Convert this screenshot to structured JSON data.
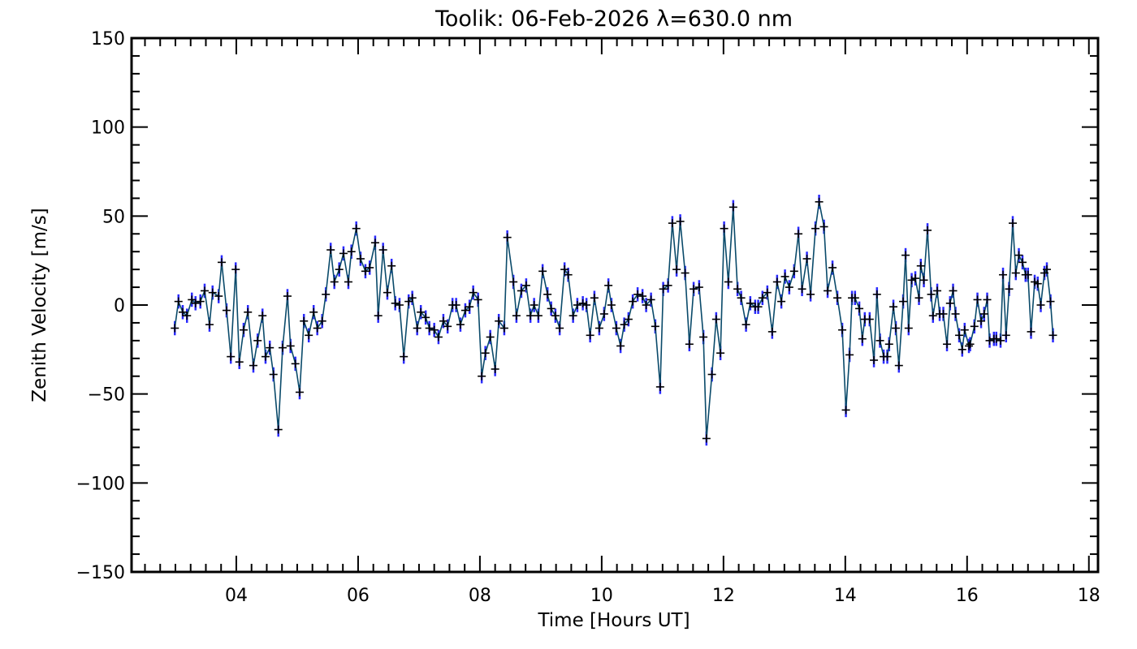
{
  "chart_data": {
    "type": "scatter",
    "title": "Toolik: 06-Feb-2026 λ=630.0 nm",
    "xlabel": "Time [Hours UT]",
    "ylabel": "Zenith Velocity [m/s]",
    "xlim": [
      2.28,
      18.15
    ],
    "ylim": [
      -150,
      150
    ],
    "x_ticks": [
      4,
      6,
      8,
      10,
      12,
      14,
      16,
      18
    ],
    "x_tick_labels": [
      "04",
      "06",
      "08",
      "10",
      "12",
      "14",
      "16",
      "18"
    ],
    "x_minor_step": 0.25,
    "y_ticks": [
      -150,
      -100,
      -50,
      0,
      50,
      100,
      150
    ],
    "y_tick_labels": [
      "−150",
      "−100",
      "−50",
      "0",
      "50",
      "100",
      "150"
    ],
    "y_minor_step": 10,
    "grid": false,
    "error_bar_halfwidth": 4,
    "colors": {
      "line": "#0a4a6a",
      "error": "#2a2aff",
      "marker": "#000000",
      "axis": "#000000"
    },
    "series": [
      {
        "name": "Zenith Velocity",
        "x": [
          2.99,
          3.05,
          3.12,
          3.19,
          3.27,
          3.33,
          3.41,
          3.48,
          3.56,
          3.61,
          3.71,
          3.76,
          3.84,
          3.91,
          3.99,
          4.05,
          4.12,
          4.19,
          4.28,
          4.35,
          4.43,
          4.48,
          4.55,
          4.61,
          4.69,
          4.76,
          4.84,
          4.89,
          4.97,
          5.04,
          5.11,
          5.19,
          5.27,
          5.33,
          5.41,
          5.47,
          5.55,
          5.61,
          5.69,
          5.76,
          5.84,
          5.89,
          5.97,
          6.04,
          6.12,
          6.19,
          6.28,
          6.33,
          6.41,
          6.48,
          6.55,
          6.61,
          6.68,
          6.75,
          6.83,
          6.89,
          6.97,
          7.03,
          7.11,
          7.17,
          7.25,
          7.32,
          7.4,
          7.47,
          7.55,
          7.61,
          7.68,
          7.76,
          7.83,
          7.89,
          7.97,
          8.03,
          8.09,
          8.17,
          8.25,
          8.31,
          8.4,
          8.45,
          8.55,
          8.6,
          8.68,
          8.76,
          8.83,
          8.89,
          8.96,
          9.03,
          9.11,
          9.17,
          9.24,
          9.31,
          9.39,
          9.45,
          9.53,
          9.6,
          9.69,
          9.75,
          9.81,
          9.88,
          9.96,
          10.04,
          10.11,
          10.16,
          10.24,
          10.31,
          10.37,
          10.44,
          10.51,
          10.59,
          10.67,
          10.73,
          10.81,
          10.88,
          10.96,
          11.01,
          11.09,
          11.16,
          11.23,
          11.29,
          11.37,
          11.44,
          11.51,
          11.6,
          11.67,
          11.72,
          11.81,
          11.88,
          11.95,
          12.01,
          12.08,
          12.16,
          12.23,
          12.29,
          12.37,
          12.44,
          12.52,
          12.57,
          12.64,
          12.72,
          12.8,
          12.88,
          12.95,
          13.01,
          13.08,
          13.16,
          13.23,
          13.29,
          13.37,
          13.43,
          13.51,
          13.57,
          13.65,
          13.71,
          13.79,
          13.87,
          13.95,
          14.01,
          14.07,
          14.11,
          14.16,
          14.23,
          14.28,
          14.32,
          14.4,
          14.47,
          14.52,
          14.57,
          14.63,
          14.69,
          14.72,
          14.79,
          14.83,
          14.88,
          14.95,
          14.99,
          15.04,
          15.09,
          15.15,
          15.21,
          15.24,
          15.29,
          15.35,
          15.41,
          15.44,
          15.51,
          15.55,
          15.61,
          15.67,
          15.72,
          15.77,
          15.81,
          15.87,
          15.92,
          15.96,
          16.03,
          16.05,
          16.12,
          16.17,
          16.23,
          16.28,
          16.33,
          16.37,
          16.44,
          16.48,
          16.55,
          16.59,
          16.64,
          16.69,
          16.75,
          16.8,
          16.85,
          16.91,
          16.96,
          17.0,
          17.05,
          17.11,
          17.16,
          17.21,
          17.27,
          17.31,
          17.37,
          17.41
        ],
        "y": [
          -13,
          2,
          -4,
          -6,
          3,
          1,
          2,
          8,
          -11,
          7,
          5,
          24,
          -3,
          -29,
          20,
          -32,
          -14,
          -4,
          -34,
          -20,
          -6,
          -29,
          -24,
          -39,
          -70,
          -24,
          5,
          -23,
          -33,
          -49,
          -9,
          -17,
          -4,
          -13,
          -9,
          6,
          31,
          13,
          20,
          29,
          13,
          30,
          43,
          26,
          19,
          21,
          35,
          -6,
          31,
          7,
          22,
          1,
          0,
          -29,
          2,
          4,
          -13,
          -4,
          -7,
          -13,
          -14,
          -18,
          -9,
          -12,
          0,
          0,
          -11,
          -3,
          -1,
          7,
          3,
          -40,
          -27,
          -18,
          -36,
          -9,
          -13,
          38,
          13,
          -6,
          8,
          11,
          -6,
          0,
          -6,
          19,
          6,
          -2,
          -6,
          -13,
          20,
          17,
          -6,
          0,
          1,
          0,
          -17,
          4,
          -13,
          -5,
          11,
          0,
          -13,
          -23,
          -11,
          -8,
          2,
          6,
          5,
          0,
          3,
          -12,
          -46,
          9,
          11,
          46,
          20,
          47,
          18,
          -22,
          9,
          10,
          -18,
          -75,
          -39,
          -8,
          -27,
          43,
          13,
          55,
          9,
          4,
          -11,
          1,
          -1,
          -1,
          4,
          7,
          -15,
          13,
          2,
          16,
          10,
          19,
          40,
          9,
          26,
          6,
          43,
          58,
          44,
          8,
          21,
          4,
          -14,
          -59,
          -28,
          4,
          4,
          -2,
          -19,
          -8,
          -8,
          -31,
          6,
          -20,
          -29,
          -29,
          -22,
          -1,
          -13,
          -34,
          2,
          28,
          -13,
          14,
          15,
          4,
          22,
          14,
          42,
          6,
          -6,
          8,
          -5,
          -5,
          -22,
          1,
          8,
          -5,
          -17,
          -25,
          -14,
          -23,
          -22,
          -12,
          3,
          -9,
          -5,
          3,
          -20,
          -19,
          -19,
          -20,
          17,
          -17,
          9,
          46,
          18,
          28,
          24,
          17,
          17,
          -15,
          13,
          12,
          0,
          18,
          20,
          2,
          -17
        ]
      }
    ]
  }
}
